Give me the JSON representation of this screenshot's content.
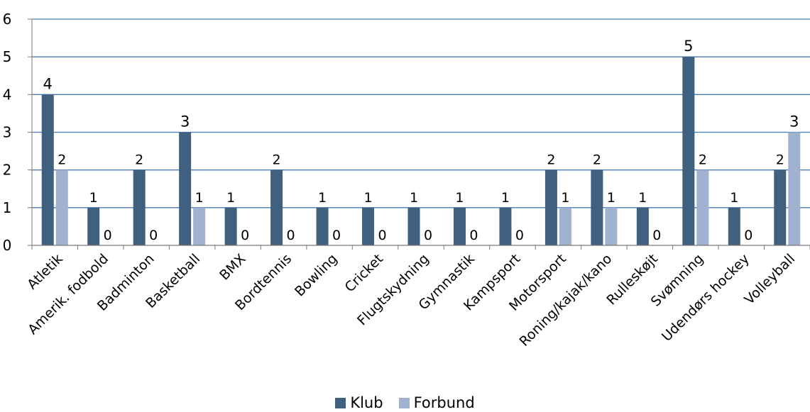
{
  "chart_data": {
    "type": "bar",
    "categories": [
      "Atletik",
      "Amerik. fodbold",
      "Badminton",
      "Basketball",
      "BMX",
      "Bordtennis",
      "Bowling",
      "Cricket",
      "Flugtskydning",
      "Gymnastik",
      "Kampsport",
      "Motorsport",
      "Roning/kajak/kano",
      "Rulleskøjt",
      "Svømning",
      "Udendørs hockey",
      "Volleyball"
    ],
    "series": [
      {
        "name": "Klub",
        "values": [
          4,
          1,
          2,
          3,
          1,
          2,
          1,
          1,
          1,
          1,
          1,
          2,
          2,
          1,
          5,
          1,
          2
        ],
        "color": "#3f607f"
      },
      {
        "name": "Forbund",
        "values": [
          2,
          0,
          0,
          1,
          0,
          0,
          0,
          0,
          0,
          0,
          0,
          1,
          1,
          0,
          2,
          0,
          3
        ],
        "color": "#a0b2cf"
      }
    ],
    "title": "",
    "xlabel": "",
    "ylabel": "",
    "ylim": [
      0,
      6
    ],
    "yticks": [
      "0",
      "1",
      "2",
      "3",
      "4",
      "5",
      "6"
    ],
    "grid": true,
    "data_labels": true,
    "legend_placement": "bottom-center"
  }
}
